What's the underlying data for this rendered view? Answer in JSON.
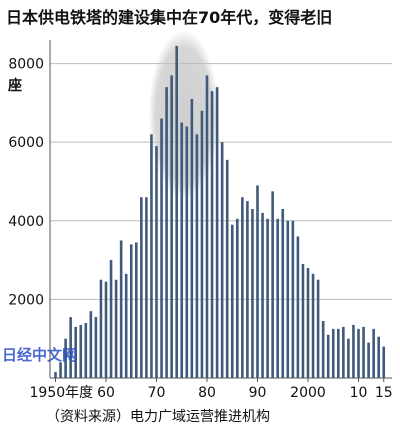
{
  "title": "日本供电铁塔的建设集中在70年代，变得老旧",
  "source": "（资料来源）电力广域运营推进机构",
  "watermark": "日经中文网",
  "colors": {
    "bar": "#3f5a7a",
    "grid": "#bbbbbb",
    "highlight": "#cfcfcf",
    "watermark": "#2b4fc7",
    "text": "#111111"
  },
  "chart_data": {
    "type": "bar",
    "title": "日本供电铁塔的建设集中在70年代，变得老旧",
    "ylabel": "座",
    "xlabel": "",
    "ylim": [
      0,
      8600
    ],
    "grid": true,
    "yticks": [
      {
        "value": 0,
        "label": ""
      },
      {
        "value": 2000,
        "label": "2000"
      },
      {
        "value": 4000,
        "label": "4000"
      },
      {
        "value": 6000,
        "label": "6000"
      },
      {
        "value": 8000,
        "label": "8000"
      }
    ],
    "xticks": [
      {
        "year": 1950,
        "label": "1950年度"
      },
      {
        "year": 1960,
        "label": "60"
      },
      {
        "year": 1970,
        "label": "70"
      },
      {
        "year": 1980,
        "label": "80"
      },
      {
        "year": 1990,
        "label": "90"
      },
      {
        "year": 2000,
        "label": "2000"
      },
      {
        "year": 2010,
        "label": "10"
      },
      {
        "year": 2015,
        "label": "15"
      }
    ],
    "highlight_range": [
      1970,
      1980
    ],
    "x": [
      1950,
      1951,
      1952,
      1953,
      1954,
      1955,
      1956,
      1957,
      1958,
      1959,
      1960,
      1961,
      1962,
      1963,
      1964,
      1965,
      1966,
      1967,
      1968,
      1969,
      1970,
      1971,
      1972,
      1973,
      1974,
      1975,
      1976,
      1977,
      1978,
      1979,
      1980,
      1981,
      1982,
      1983,
      1984,
      1985,
      1986,
      1987,
      1988,
      1989,
      1990,
      1991,
      1992,
      1993,
      1994,
      1995,
      1996,
      1997,
      1998,
      1999,
      2000,
      2001,
      2002,
      2003,
      2004,
      2005,
      2006,
      2007,
      2008,
      2009,
      2010,
      2011,
      2012,
      2013,
      2014,
      2015
    ],
    "values": [
      150,
      400,
      1000,
      1550,
      1300,
      1350,
      1400,
      1700,
      1550,
      2500,
      2450,
      3000,
      2500,
      3500,
      2650,
      3400,
      3450,
      4600,
      4600,
      6200,
      5900,
      6600,
      7400,
      7700,
      8450,
      6500,
      6400,
      7100,
      6200,
      6800,
      7700,
      7300,
      7400,
      6000,
      5550,
      3900,
      4050,
      4600,
      4500,
      4300,
      4900,
      4200,
      4050,
      4750,
      4050,
      4300,
      4000,
      4000,
      3600,
      2900,
      2800,
      2650,
      2500,
      1450,
      1100,
      1250,
      1250,
      1300,
      1000,
      1350,
      1250,
      1300,
      900,
      1250,
      1050,
      800
    ]
  }
}
